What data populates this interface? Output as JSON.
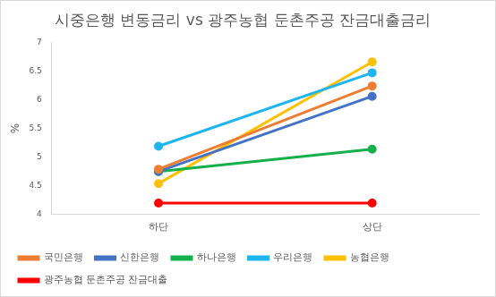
{
  "chart_data": {
    "type": "line",
    "title": "시중은행 변동금리 vs 광주농협 둔촌주공 잔금대출금리",
    "y_label": "%",
    "categories": [
      "하단",
      "상단"
    ],
    "series": [
      {
        "name": "국민은행",
        "color": "#ed7d31",
        "values": [
          4.79,
          6.24
        ]
      },
      {
        "name": "신한은행",
        "color": "#4472c4",
        "values": [
          4.75,
          6.06
        ]
      },
      {
        "name": "하나은행",
        "color": "#14b04c",
        "values": [
          4.75,
          5.14
        ]
      },
      {
        "name": "우리은행",
        "color": "#1fb5ef",
        "values": [
          5.19,
          6.47
        ]
      },
      {
        "name": "농협은행",
        "color": "#ffc000",
        "values": [
          4.54,
          6.66
        ]
      },
      {
        "name": "광주농협 둔촌주공 잔금대출",
        "color": "#ff0000",
        "values": [
          4.2,
          4.2
        ]
      }
    ],
    "ylim": [
      4,
      7
    ],
    "yticks": [
      4,
      4.5,
      5,
      5.5,
      6,
      6.5,
      7
    ],
    "grid": false,
    "legend": "bottom",
    "marker": "circle",
    "line_style": "solid"
  }
}
